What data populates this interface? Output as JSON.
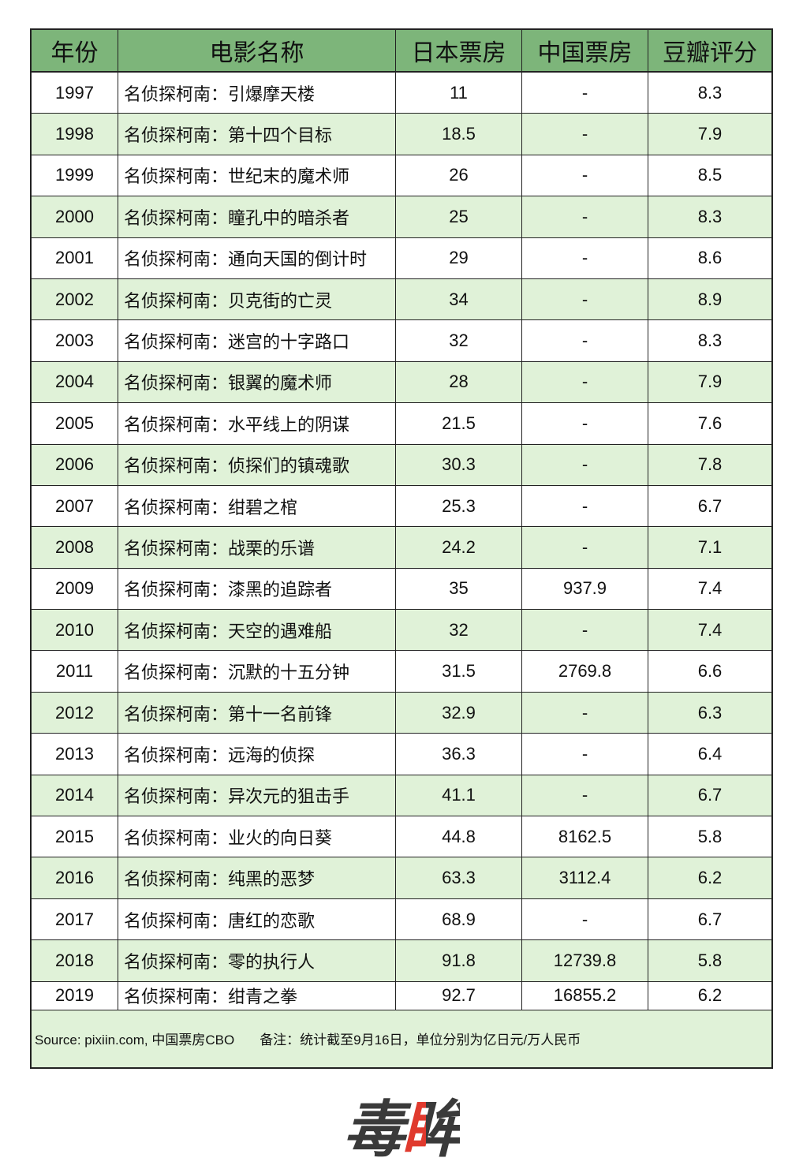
{
  "table": {
    "headers": [
      "年份",
      "电影名称",
      "日本票房",
      "中国票房",
      "豆瓣评分"
    ],
    "rows": [
      [
        "1997",
        "名侦探柯南：引爆摩天楼",
        "11",
        "-",
        "8.3"
      ],
      [
        "1998",
        "名侦探柯南：第十四个目标",
        "18.5",
        "-",
        "7.9"
      ],
      [
        "1999",
        "名侦探柯南：世纪末的魔术师",
        "26",
        "-",
        "8.5"
      ],
      [
        "2000",
        "名侦探柯南：瞳孔中的暗杀者",
        "25",
        "-",
        "8.3"
      ],
      [
        "2001",
        "名侦探柯南：通向天国的倒计时",
        "29",
        "-",
        "8.6"
      ],
      [
        "2002",
        "名侦探柯南：贝克街的亡灵",
        "34",
        "-",
        "8.9"
      ],
      [
        "2003",
        "名侦探柯南：迷宫的十字路口",
        "32",
        "-",
        "8.3"
      ],
      [
        "2004",
        "名侦探柯南：银翼的魔术师",
        "28",
        "-",
        "7.9"
      ],
      [
        "2005",
        "名侦探柯南：水平线上的阴谋",
        "21.5",
        "-",
        "7.6"
      ],
      [
        "2006",
        "名侦探柯南：侦探们的镇魂歌",
        "30.3",
        "-",
        "7.8"
      ],
      [
        "2007",
        "名侦探柯南：绀碧之棺",
        "25.3",
        "-",
        "6.7"
      ],
      [
        "2008",
        "名侦探柯南：战栗的乐谱",
        "24.2",
        "-",
        "7.1"
      ],
      [
        "2009",
        "名侦探柯南：漆黑的追踪者",
        "35",
        "937.9",
        "7.4"
      ],
      [
        "2010",
        "名侦探柯南：天空的遇难船",
        "32",
        "-",
        "7.4"
      ],
      [
        "2011",
        "名侦探柯南：沉默的十五分钟",
        "31.5",
        "2769.8",
        "6.6"
      ],
      [
        "2012",
        "名侦探柯南：第十一名前锋",
        "32.9",
        "-",
        "6.3"
      ],
      [
        "2013",
        "名侦探柯南：远海的侦探",
        "36.3",
        "-",
        "6.4"
      ],
      [
        "2014",
        "名侦探柯南：异次元的狙击手",
        "41.1",
        "-",
        "6.7"
      ],
      [
        "2015",
        "名侦探柯南：业火的向日葵",
        "44.8",
        "8162.5",
        "5.8"
      ],
      [
        "2016",
        "名侦探柯南：纯黑的恶梦",
        "63.3",
        "3112.4",
        "6.2"
      ],
      [
        "2017",
        "名侦探柯南：唐红的恋歌",
        "68.9",
        "-",
        "6.7"
      ],
      [
        "2018",
        "名侦探柯南：零的执行人",
        "91.8",
        "12739.8",
        "5.8"
      ],
      [
        "2019",
        "名侦探柯南：绀青之拳",
        "92.7",
        "16855.2",
        "6.2"
      ]
    ]
  },
  "footer": {
    "source": "Source: pixiin.com, 中国票房CBO",
    "note": "备注：统计截至9月16日，单位分别为亿日元/万人民币"
  },
  "logo": {
    "char1": "毒",
    "char2": "眸"
  },
  "colors": {
    "header_bg": "#7db57a",
    "alt_row_bg": "#e0f2d8",
    "logo_red": "#e03a2e",
    "logo_dark": "#3a3a3a"
  }
}
